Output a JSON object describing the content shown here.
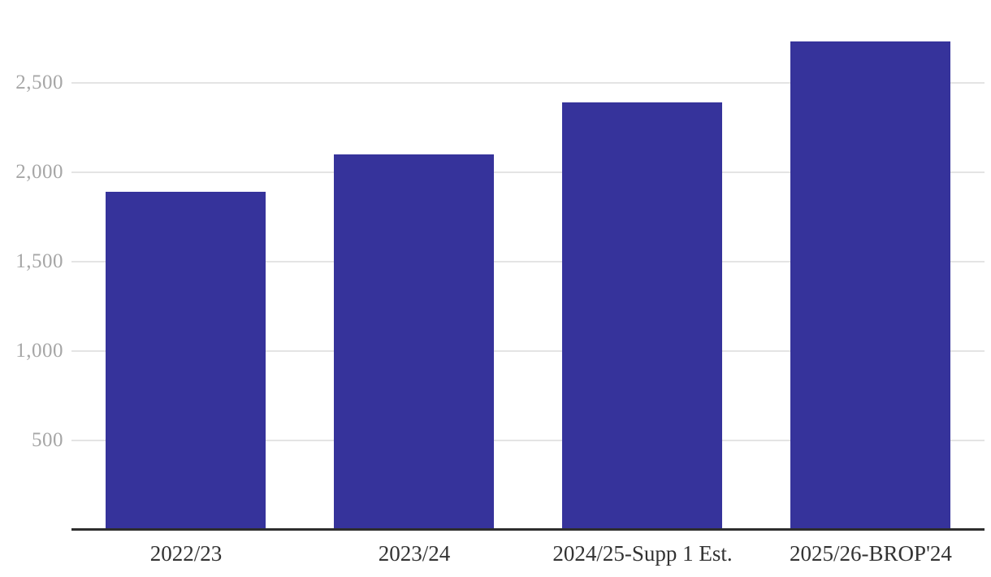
{
  "chart_data": {
    "type": "bar",
    "title": "",
    "xlabel": "",
    "ylabel": "",
    "categories": [
      "2022/23",
      "2023/24",
      "2024/25-Supp 1 Est.",
      "2025/26-BROP'24"
    ],
    "values": [
      1890,
      2100,
      2390,
      2730
    ],
    "yticks": [
      {
        "value": 500,
        "label": "500"
      },
      {
        "value": 1000,
        "label": "1,000"
      },
      {
        "value": 1500,
        "label": "1,500"
      },
      {
        "value": 2000,
        "label": "2,000"
      },
      {
        "value": 2500,
        "label": "2,500"
      }
    ],
    "ylim": [
      0,
      2950
    ],
    "grid": true,
    "legend": "none",
    "colors": {
      "bar": "#36339B",
      "gridline": "#e4e4e4",
      "axis_line": "#2e2e2e",
      "ytick_label": "#a6a6a6",
      "xtick_label": "#333333",
      "background": "#ffffff"
    }
  }
}
